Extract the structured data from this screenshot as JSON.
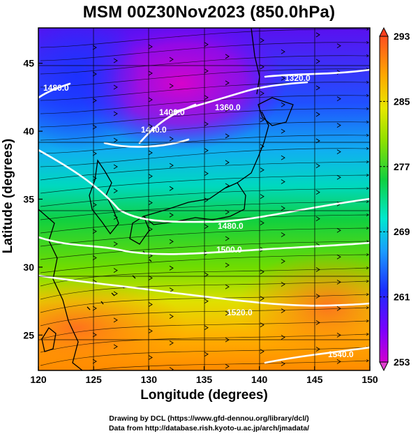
{
  "title": "MSM 00Z30Nov2023 (850.0hPa)",
  "x_axis": {
    "label": "Longitude (degrees)",
    "range": [
      120,
      150
    ],
    "ticks": [
      "120",
      "125",
      "130",
      "135",
      "140",
      "145",
      "150"
    ]
  },
  "y_axis": {
    "label": "Latitude  (degrees)",
    "range": [
      22.4,
      47.6
    ],
    "ticks": [
      "25",
      "30",
      "35",
      "40",
      "45"
    ]
  },
  "colorbar": {
    "range": [
      253,
      293
    ],
    "ticks": [
      "293",
      "285",
      "277",
      "269",
      "261",
      "253"
    ],
    "colors": [
      "#cc00cc",
      "#7a00ff",
      "#1a2cff",
      "#1ab0ff",
      "#00e8c8",
      "#10d040",
      "#8ee000",
      "#e8e800",
      "#ffb000",
      "#ff7000",
      "#e82020"
    ]
  },
  "contours": [
    {
      "label": "1320.0"
    },
    {
      "label": "1360.0"
    },
    {
      "label": "1400.0"
    },
    {
      "label": "1440.0"
    },
    {
      "label": "1480.0"
    },
    {
      "label": "1480.0"
    },
    {
      "label": "1500.0"
    },
    {
      "label": "1520.0"
    },
    {
      "label": "1540.0"
    }
  ],
  "credits": {
    "line1": "Drawing by DCL (https://www.gfd-dennou.org/library/dcl/)",
    "line2": "Data from http://database.rish.kyoto-u.ac.jp/arch/jmadata/"
  },
  "colors": {
    "contour": "#ffffff",
    "coast": "#000000",
    "streamline": "#000000"
  }
}
